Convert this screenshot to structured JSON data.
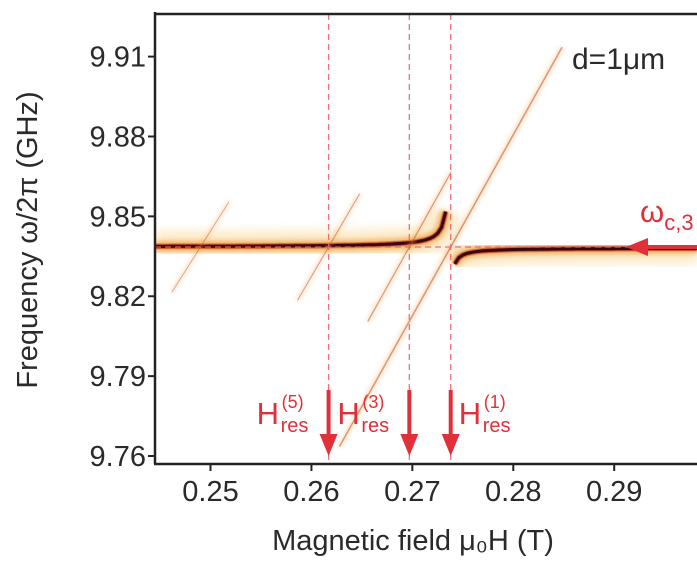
{
  "chart_data": {
    "type": "heatmap",
    "title": "",
    "xlabel": "Magnetic field μ₀H (T)",
    "ylabel": "Frequency  ω/2π (GHz)",
    "xlim": [
      0.2445,
      0.2985
    ],
    "ylim": [
      9.757,
      9.926
    ],
    "x_ticks": [
      0.25,
      0.26,
      0.27,
      0.28,
      0.29
    ],
    "x_tick_labels": [
      "0.25",
      "0.26",
      "0.27",
      "0.28",
      "0.29"
    ],
    "y_ticks": [
      9.76,
      9.79,
      9.82,
      9.85,
      9.88,
      9.91
    ],
    "y_tick_labels": [
      "9.76",
      "9.79",
      "9.82",
      "9.85",
      "9.88",
      "9.91"
    ],
    "grid": false,
    "colormap": [
      "#ffffff",
      "#fbe7c0",
      "#f0b060",
      "#c0401a",
      "#3a0610"
    ],
    "annotations": {
      "thickness": "d=1μm",
      "cavity_mode_label": "ω",
      "cavity_mode_subscript": "c,3",
      "res_symbol": "H",
      "res_subscript": "res",
      "res_labels": [
        {
          "order": "(5)",
          "field": 0.2617
        },
        {
          "order": "(3)",
          "field": 0.2697
        },
        {
          "order": "(1)",
          "field": 0.2738
        }
      ]
    },
    "cavity_frequency": 9.8385,
    "small_crossing_field": 0.249,
    "annotation_color": "#e0303a"
  }
}
